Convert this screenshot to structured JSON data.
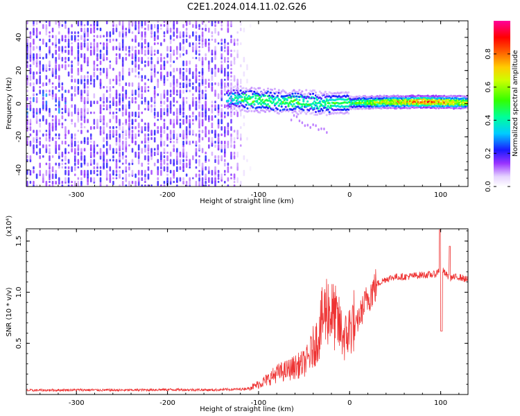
{
  "title": "C2E1.2024.014.11.02.G26",
  "chart_data": [
    {
      "type": "heatmap",
      "title": "C2E1.2024.014.11.02.G26",
      "xlabel": "Height of straight line (km)",
      "ylabel": "Frequency (Hz)",
      "xlim": [
        -355,
        130
      ],
      "ylim": [
        -50,
        50
      ],
      "xticks": [
        -300,
        -200,
        -100,
        0,
        100
      ],
      "xtick_labels": [
        "-300",
        "-200",
        "-100",
        "0",
        "100"
      ],
      "yticks": [
        -40,
        -20,
        0,
        20,
        40
      ],
      "ytick_labels": [
        "-40",
        "-20",
        "0",
        "20",
        "40"
      ],
      "grid": false,
      "colorbar": {
        "label": "Normalized spectral amplitude",
        "range": [
          0,
          1
        ],
        "ticks": [
          0,
          0.2,
          0.4,
          0.6,
          0.8
        ],
        "tick_labels": [
          "0.0",
          "0.2",
          "0.4",
          "0.6",
          "0.8"
        ],
        "colormap": "rainbow: white, violet, blue, cyan, green, yellow, orange, red, magenta"
      },
      "noise_region": {
        "x_range": [
          -355,
          -110
        ],
        "frequency_range": [
          -50,
          50
        ],
        "amplitude": [
          0.05,
          0.2
        ]
      },
      "signal_track": {
        "x": [
          -135,
          -120,
          -100,
          -80,
          -60,
          -40,
          -20,
          0,
          20,
          40,
          60,
          80,
          100,
          120,
          130
        ],
        "center_frequency": [
          3,
          3,
          2,
          1.5,
          1,
          0.5,
          0.3,
          0.5,
          0.8,
          1,
          1,
          1.2,
          1,
          0.8,
          0.8
        ],
        "amplitude": [
          0.35,
          0.5,
          0.55,
          0.5,
          0.55,
          0.45,
          0.5,
          0.5,
          0.6,
          0.7,
          0.75,
          0.9,
          0.8,
          0.7,
          0.7
        ]
      }
    },
    {
      "type": "line",
      "xlabel": "Height of straight line (km)",
      "ylabel": "SNR (10 * v/v)",
      "y_multiplier": "(x10⁴)",
      "xlim": [
        -355,
        130
      ],
      "ylim": [
        0,
        16200
      ],
      "xticks": [
        -300,
        -200,
        -100,
        0,
        100
      ],
      "xtick_labels": [
        "-300",
        "-200",
        "-100",
        "0",
        "100"
      ],
      "yticks": [
        5000,
        10000,
        15000
      ],
      "ytick_labels": [
        "0.5",
        "1.0",
        "1.5"
      ],
      "grid": false,
      "series": [
        {
          "color": "#ee3333",
          "x": [
            -355,
            -300,
            -250,
            -200,
            -150,
            -120,
            -105,
            -90,
            -80,
            -70,
            -60,
            -50,
            -45,
            -40,
            -35,
            -30,
            -25,
            -20,
            -15,
            -10,
            -5,
            0,
            5,
            10,
            20,
            30,
            40,
            50,
            60,
            70,
            80,
            90,
            95,
            100,
            105,
            110,
            120,
            130
          ],
          "y": [
            400,
            450,
            420,
            480,
            450,
            520,
            650,
            1200,
            1700,
            1900,
            2200,
            2500,
            2900,
            3800,
            4500,
            6000,
            7000,
            6500,
            6000,
            5200,
            4500,
            5200,
            6000,
            7500,
            9500,
            10800,
            11300,
            11500,
            11500,
            11600,
            11700,
            11700,
            11800,
            12400,
            11800,
            11400,
            11500,
            11200
          ]
        }
      ]
    }
  ]
}
